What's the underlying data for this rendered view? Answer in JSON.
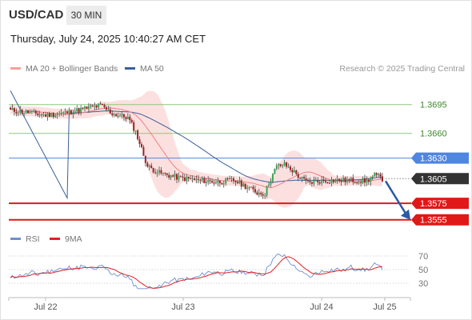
{
  "header": {
    "symbol": "USD/CAD",
    "interval": "30 MIN",
    "datetime": "Thursday, July 24, 2025 10:40:27 AM CET"
  },
  "legend": {
    "items": [
      {
        "label": "MA 20 + Bollinger Bands",
        "color": "#f28b82"
      },
      {
        "label": "MA 50",
        "color": "#3b5f99"
      }
    ],
    "credit": "Research © 2025 Trading Central"
  },
  "rsi_legend": {
    "items": [
      {
        "label": "RSI",
        "color": "#6f8fd4"
      },
      {
        "label": "9MA",
        "color": "#e02020"
      }
    ]
  },
  "chart_data": [
    {
      "type": "candlestick",
      "title": "USD/CAD",
      "ylim": [
        1.3545,
        1.372
      ],
      "x_ticks": [
        "Jul 22",
        "Jul 23",
        "Jul 24",
        "Jul 25"
      ],
      "levels": [
        {
          "value": 1.3695,
          "label": "1.3695",
          "color": "#8cc878",
          "text_color": "#3d8a2a",
          "style": "green-line"
        },
        {
          "value": 1.366,
          "label": "1.3660",
          "color": "#8cc878",
          "text_color": "#3d8a2a",
          "style": "green-line"
        },
        {
          "value": 1.363,
          "label": "1.3630",
          "color": "#4f86e0",
          "style": "blue-badge"
        },
        {
          "value": 1.3605,
          "label": "1.3605",
          "color": "#333333",
          "style": "price-badge"
        },
        {
          "value": 1.3575,
          "label": "1.3575",
          "color": "#e01818",
          "style": "red-badge"
        },
        {
          "value": 1.3555,
          "label": "1.3555",
          "color": "#e01818",
          "style": "red-badge"
        }
      ],
      "current_price": 1.3605,
      "forecast": {
        "from": 1.3605,
        "to": 1.3555,
        "direction": "down"
      },
      "colors": {
        "up": "#3aa655",
        "down": "#a02020",
        "band_fill": "#fbdada",
        "ma20": "#f08080",
        "ma50": "#3b5f99"
      }
    },
    {
      "type": "line",
      "title": "RSI",
      "ylim": [
        20,
        80
      ],
      "y_ticks": [
        70,
        50,
        30
      ],
      "series": [
        {
          "name": "RSI",
          "color": "#6f8fd4"
        },
        {
          "name": "9MA",
          "color": "#e02020"
        }
      ]
    }
  ]
}
